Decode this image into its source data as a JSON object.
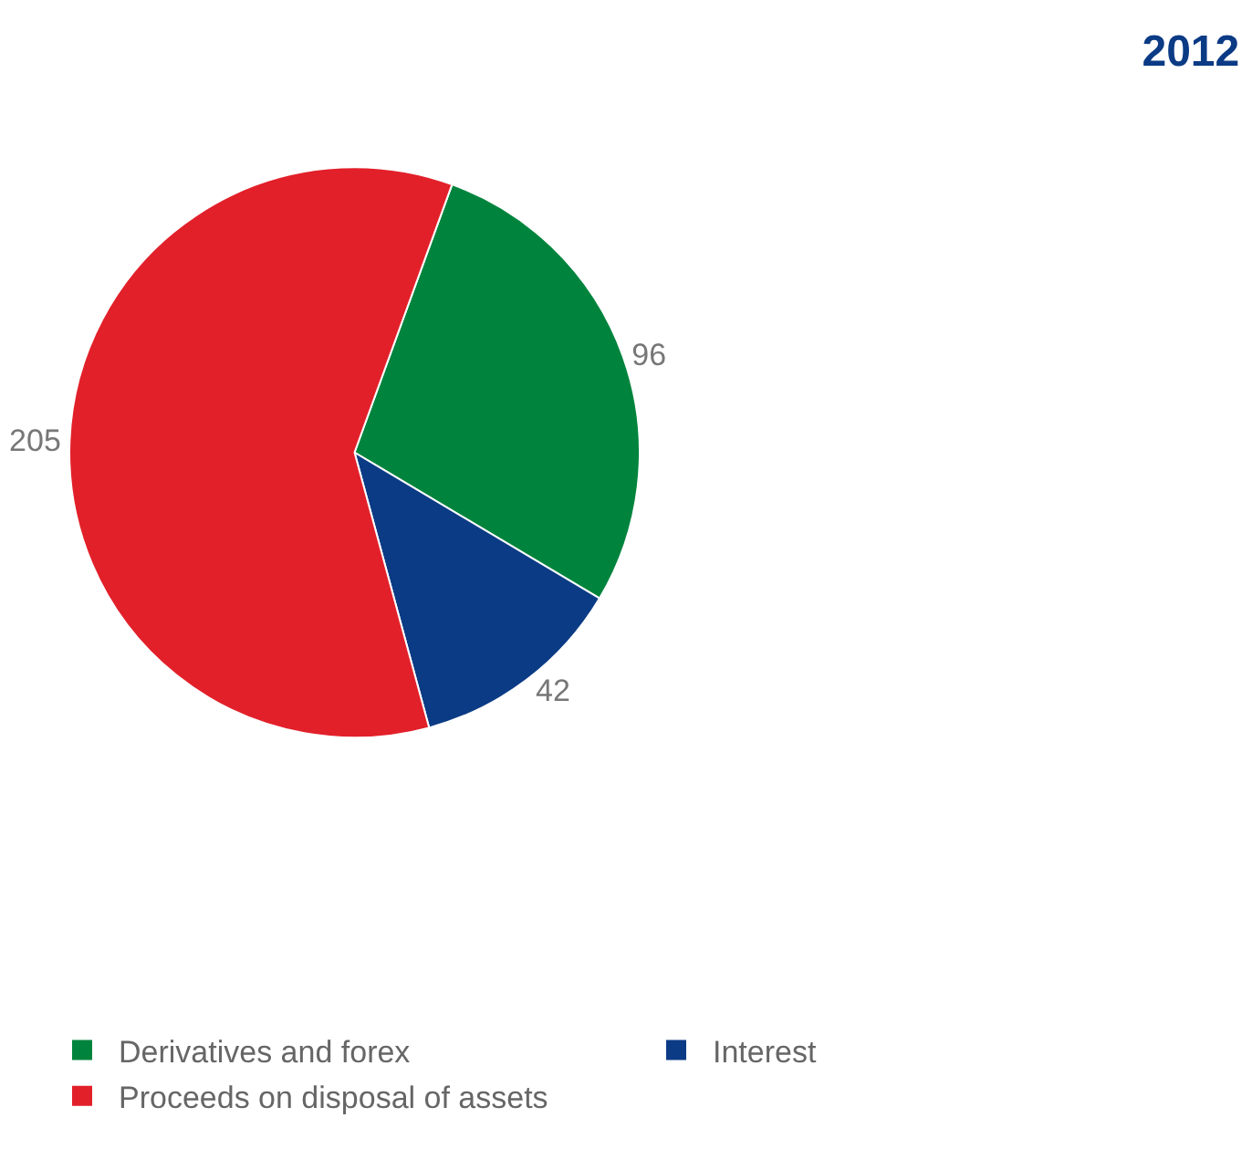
{
  "chart_data": {
    "type": "pie",
    "title": "2012",
    "categories": [
      "Derivatives and forex",
      "Interest",
      "Proceeds on disposal of assets"
    ],
    "values": [
      96,
      42,
      205
    ],
    "colors": [
      "#00843d",
      "#0b3b85",
      "#e2202a"
    ],
    "data_labels": true,
    "legend": "bottom"
  }
}
